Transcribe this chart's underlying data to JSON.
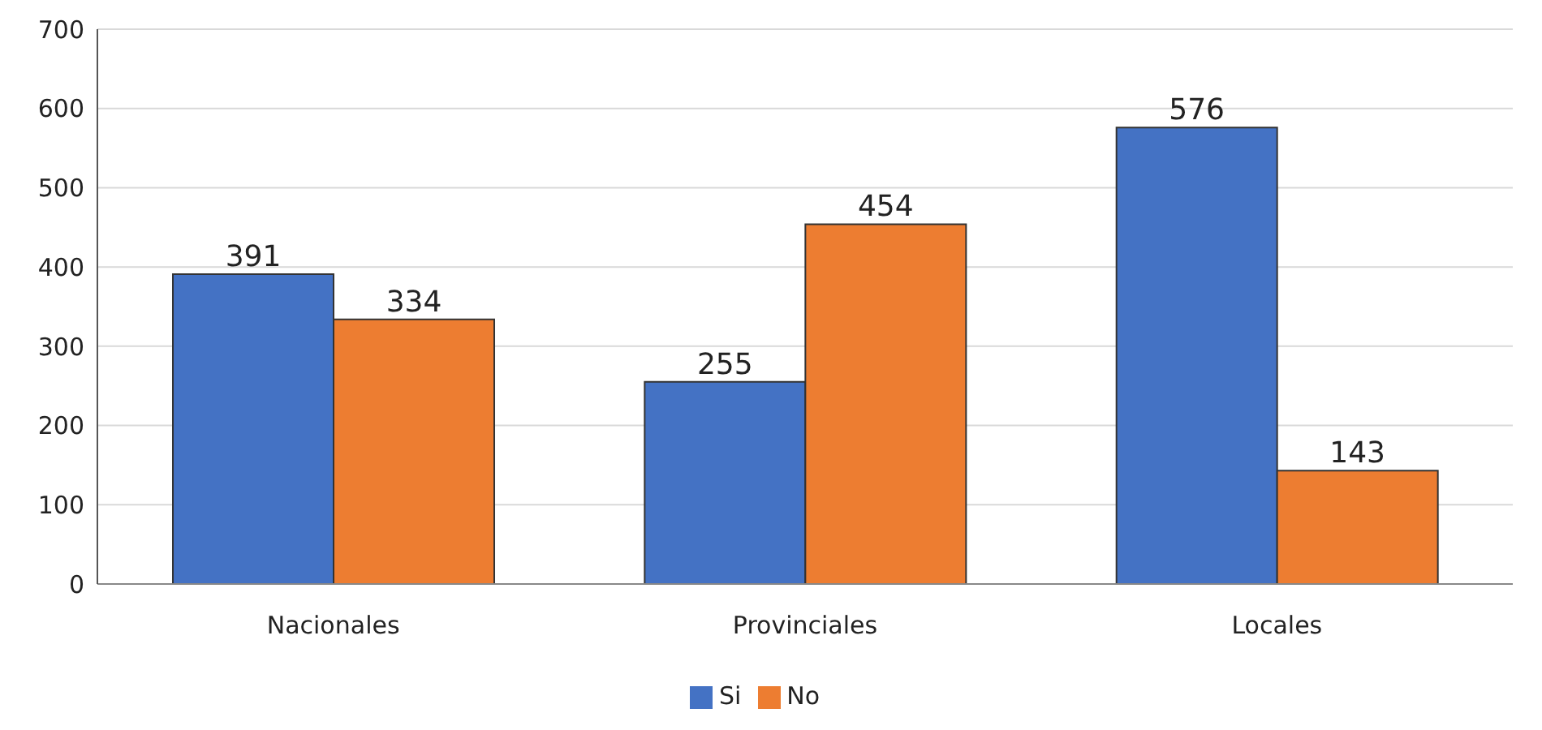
{
  "chart_data": {
    "type": "bar",
    "categories": [
      "Nacionales",
      "Provinciales",
      "Locales"
    ],
    "series": [
      {
        "name": "Si",
        "color": "#4472c4",
        "values": [
          391,
          255,
          576
        ]
      },
      {
        "name": "No",
        "color": "#ed7d31",
        "values": [
          334,
          454,
          143
        ]
      }
    ],
    "ylim": [
      0,
      700
    ],
    "yticks": [
      0,
      100,
      200,
      300,
      400,
      500,
      600,
      700
    ],
    "grid": "y",
    "legend": "bottom",
    "data_labels": true
  }
}
